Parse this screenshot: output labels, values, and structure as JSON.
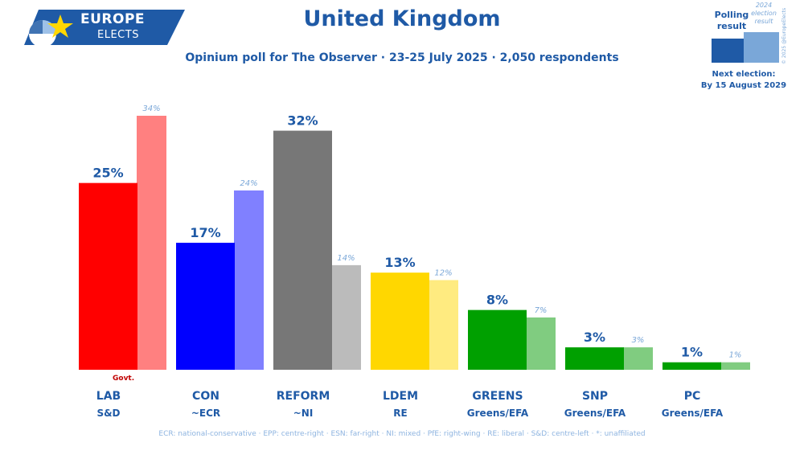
{
  "header": {
    "logo_line1": "EUROPE",
    "logo_line2": "ELECTS",
    "title": "United Kingdom",
    "subtitle": "Opinium poll for The Observer · 23-25 July 2025 · 2,050 respondents"
  },
  "legend": {
    "poll_label": "Polling result",
    "election_label": "2024 election result",
    "copyright": "© 2025 @EuropeElects",
    "next_election_label": "Next election:",
    "next_election_date": "By 15 August 2029"
  },
  "colors": {
    "brand": "#1f5aa6",
    "secondary": "#7aa7d8"
  },
  "chart_data": {
    "type": "bar",
    "title": "United Kingdom",
    "categories": [
      "LAB",
      "CON",
      "REFORM",
      "LDEM",
      "GREENS",
      "SNP",
      "PC"
    ],
    "groups": [
      "S&D",
      "~ECR",
      "~NI",
      "RE",
      "Greens/EFA",
      "Greens/EFA",
      "Greens/EFA"
    ],
    "series": [
      {
        "name": "Polling result",
        "values": [
          25,
          17,
          32,
          13,
          8,
          3,
          1
        ],
        "labels": [
          "25%",
          "17%",
          "32%",
          "13%",
          "8%",
          "3%",
          "1%"
        ]
      },
      {
        "name": "2024 election result",
        "values": [
          34,
          24,
          14,
          12,
          7,
          3,
          1
        ],
        "labels": [
          "34%",
          "24%",
          "14%",
          "12%",
          "7%",
          "3%",
          "1%"
        ]
      }
    ],
    "poll_colors": [
      "#ff0000",
      "#0000ff",
      "#777777",
      "#ffd700",
      "#00a000",
      "#00a000",
      "#00a000"
    ],
    "election_colors": [
      "#ff8080",
      "#8080ff",
      "#bbbbbb",
      "#ffeb80",
      "#80cc80",
      "#80cc80",
      "#80cc80"
    ],
    "government_marker": "Govt.",
    "ylim": [
      0,
      34
    ]
  },
  "footer": "ECR: national-conservative · EPP: centre-right · ESN: far-right · NI: mixed · PfE: right-wing · RE: liberal · S&D: centre-left · *: unaffiliated"
}
